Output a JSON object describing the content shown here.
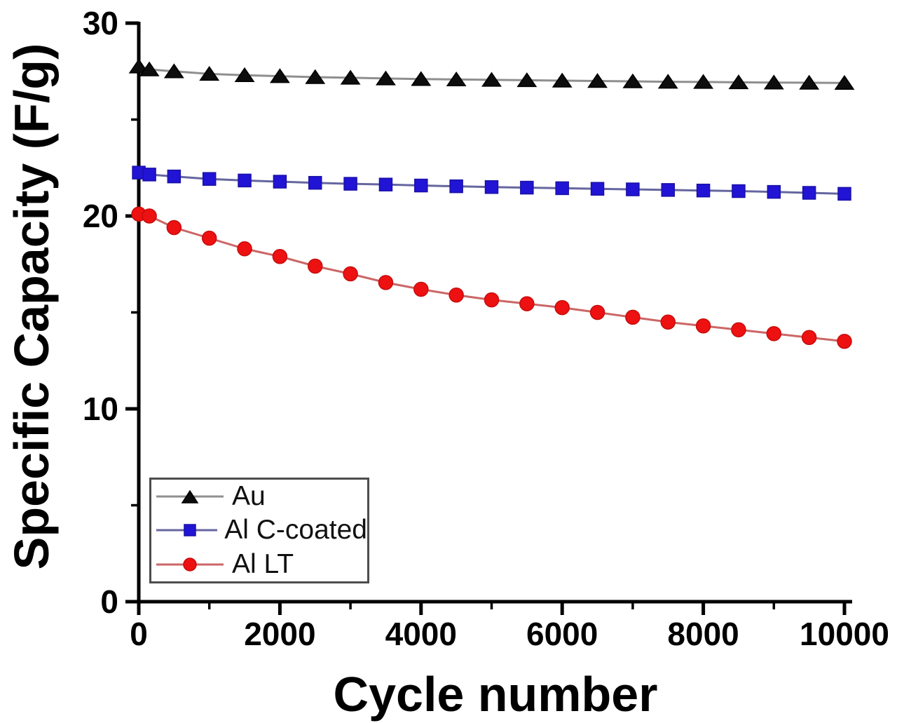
{
  "chart_data": {
    "type": "line",
    "title": "",
    "xlabel": "Cycle number",
    "ylabel": "Specific Capacity (F/g)",
    "xlim": [
      0,
      10000
    ],
    "ylim": [
      0,
      30
    ],
    "x_major_ticks": [
      0,
      2000,
      4000,
      6000,
      8000,
      10000
    ],
    "x_minor_ticks": [
      1000,
      3000,
      5000,
      7000,
      9000
    ],
    "y_major_ticks": [
      0,
      10,
      20,
      30
    ],
    "y_minor_ticks": [
      5,
      15,
      25
    ],
    "grid": false,
    "legend_position": "lower-left",
    "axis_color": "#000000",
    "x": [
      1,
      150,
      500,
      1000,
      1500,
      2000,
      2500,
      3000,
      3500,
      4000,
      4500,
      5000,
      5500,
      6000,
      6500,
      7000,
      7500,
      8000,
      8500,
      9000,
      9500,
      10000
    ],
    "series": [
      {
        "name": "Au",
        "marker": "triangle",
        "marker_color": "#0d0d0d",
        "marker_edge": "#000000",
        "line_color": "#8f8f8f",
        "values": [
          27.75,
          27.6,
          27.5,
          27.37,
          27.3,
          27.25,
          27.2,
          27.17,
          27.13,
          27.1,
          27.08,
          27.06,
          27.04,
          27.02,
          27.0,
          26.98,
          26.96,
          26.95,
          26.93,
          26.92,
          26.91,
          26.9
        ]
      },
      {
        "name": "Al C-coated",
        "marker": "square",
        "marker_color": "#2114d4",
        "marker_edge": "#1a10a8",
        "line_color": "#6666a0",
        "values": [
          22.25,
          22.15,
          22.05,
          21.92,
          21.84,
          21.78,
          21.72,
          21.67,
          21.63,
          21.58,
          21.54,
          21.5,
          21.47,
          21.44,
          21.41,
          21.38,
          21.35,
          21.32,
          21.29,
          21.25,
          21.2,
          21.15
        ]
      },
      {
        "name": "Al LT",
        "marker": "circle",
        "marker_color": "#ee1111",
        "marker_edge": "#c60d0d",
        "line_color": "#cc6666",
        "values": [
          20.1,
          20.0,
          19.4,
          18.85,
          18.3,
          17.9,
          17.4,
          17.0,
          16.55,
          16.2,
          15.9,
          15.65,
          15.45,
          15.25,
          15.0,
          14.75,
          14.5,
          14.3,
          14.1,
          13.9,
          13.7,
          13.5
        ]
      }
    ]
  }
}
